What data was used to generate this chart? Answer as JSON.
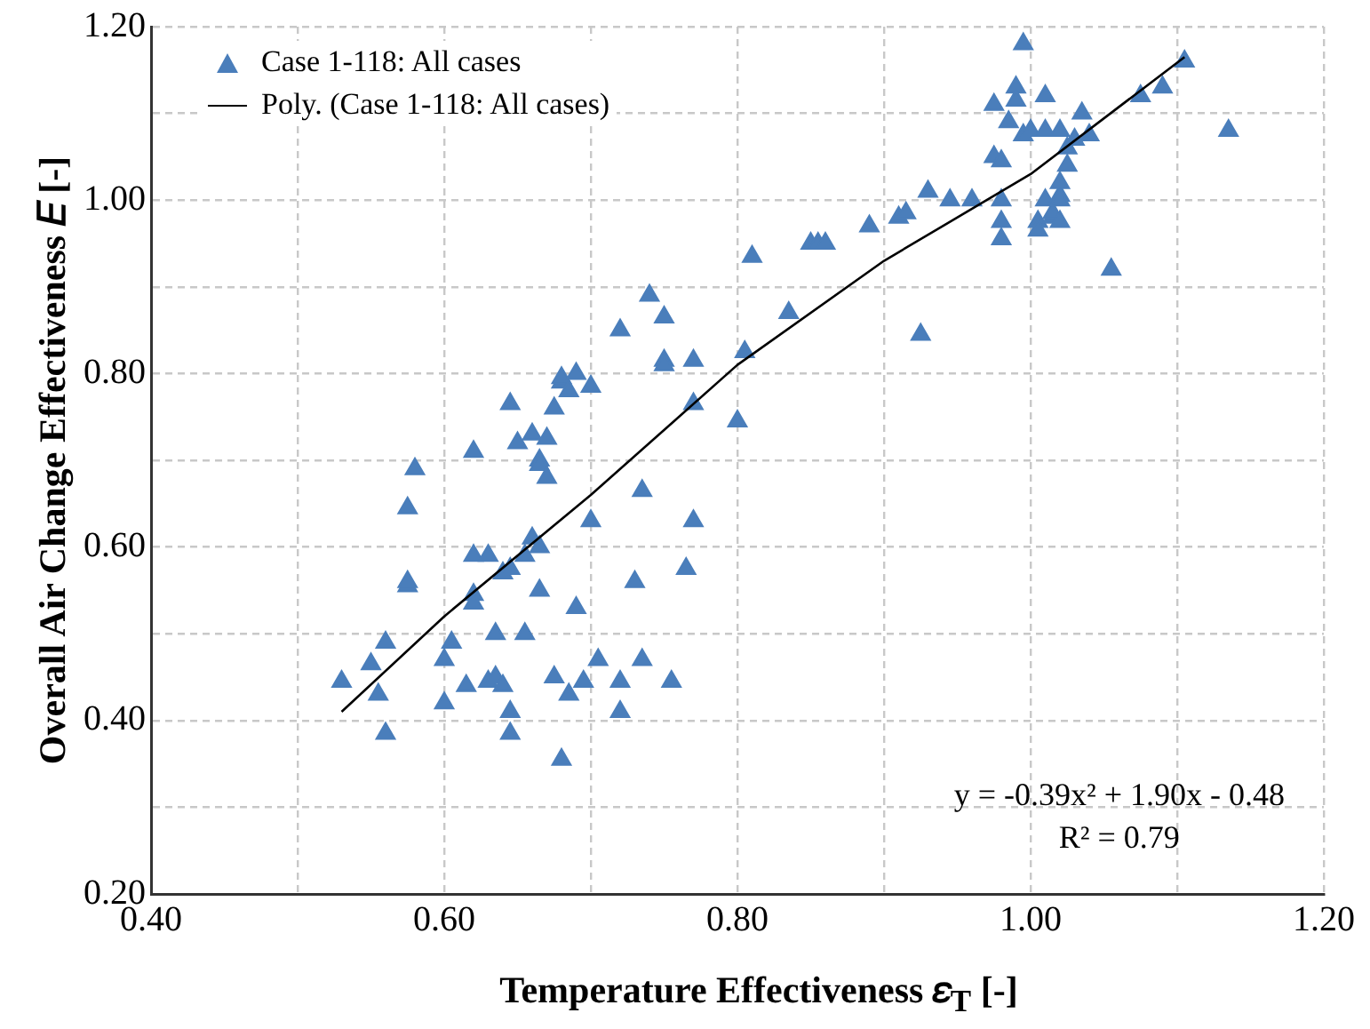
{
  "chart_data": {
    "type": "scatter",
    "xlabel": "Temperature Effectiveness 𝜀$_{T}$  [-]",
    "ylabel": "Overall Air Change Effectiveness 𝐸 [-]",
    "xlim": [
      0.4,
      1.2
    ],
    "ylim": [
      0.2,
      1.2
    ],
    "xticks": [
      {
        "value": 0.4,
        "label": "0.40"
      },
      {
        "value": 0.5,
        "label": null
      },
      {
        "value": 0.6,
        "label": "0.60"
      },
      {
        "value": 0.7,
        "label": null
      },
      {
        "value": 0.8,
        "label": "0.80"
      },
      {
        "value": 0.9,
        "label": null
      },
      {
        "value": 1.0,
        "label": "1.00"
      },
      {
        "value": 1.1,
        "label": null
      },
      {
        "value": 1.2,
        "label": "1.20"
      }
    ],
    "yticks": [
      {
        "value": 0.2,
        "label": "0.20"
      },
      {
        "value": 0.3,
        "label": null
      },
      {
        "value": 0.4,
        "label": "0.40"
      },
      {
        "value": 0.5,
        "label": null
      },
      {
        "value": 0.6,
        "label": "0.60"
      },
      {
        "value": 0.7,
        "label": null
      },
      {
        "value": 0.8,
        "label": "0.80"
      },
      {
        "value": 0.9,
        "label": null
      },
      {
        "value": 1.0,
        "label": "1.00"
      },
      {
        "value": 1.1,
        "label": null
      },
      {
        "value": 1.2,
        "label": "1.20"
      }
    ],
    "grid": true,
    "legend": "top left",
    "marker": "triangle",
    "annotations": [
      "y = -0.39x² + 1.90x - 0.48",
      "R² = 0.79"
    ],
    "series": [
      {
        "name": "Case 1-118: All cases",
        "color": "#4a7ebb",
        "x": [
          0.53,
          0.55,
          0.555,
          0.56,
          0.56,
          0.575,
          0.575,
          0.575,
          0.58,
          0.6,
          0.6,
          0.605,
          0.615,
          0.62,
          0.62,
          0.62,
          0.62,
          0.63,
          0.63,
          0.635,
          0.635,
          0.64,
          0.64,
          0.645,
          0.645,
          0.645,
          0.645,
          0.65,
          0.655,
          0.655,
          0.66,
          0.66,
          0.665,
          0.665,
          0.665,
          0.665,
          0.67,
          0.67,
          0.675,
          0.675,
          0.68,
          0.68,
          0.68,
          0.685,
          0.685,
          0.69,
          0.69,
          0.695,
          0.7,
          0.7,
          0.705,
          0.72,
          0.72,
          0.72,
          0.73,
          0.735,
          0.735,
          0.74,
          0.75,
          0.75,
          0.75,
          0.755,
          0.765,
          0.77,
          0.77,
          0.77,
          0.8,
          0.805,
          0.81,
          0.835,
          0.85,
          0.855,
          0.86,
          0.89,
          0.91,
          0.915,
          0.925,
          0.93,
          0.945,
          0.96,
          0.975,
          0.975,
          0.98,
          0.98,
          0.98,
          0.98,
          0.985,
          0.99,
          0.99,
          0.995,
          0.995,
          1.0,
          1.005,
          1.005,
          1.01,
          1.01,
          1.01,
          1.015,
          1.015,
          1.02,
          1.02,
          1.02,
          1.02,
          1.02,
          1.025,
          1.025,
          1.03,
          1.035,
          1.04,
          1.055,
          1.075,
          1.09,
          1.105,
          1.135
        ],
        "values": [
          0.445,
          0.465,
          0.43,
          0.49,
          0.385,
          0.555,
          0.56,
          0.645,
          0.69,
          0.42,
          0.47,
          0.49,
          0.44,
          0.59,
          0.545,
          0.535,
          0.71,
          0.59,
          0.445,
          0.45,
          0.5,
          0.44,
          0.57,
          0.575,
          0.41,
          0.385,
          0.765,
          0.72,
          0.59,
          0.5,
          0.61,
          0.73,
          0.6,
          0.7,
          0.695,
          0.55,
          0.68,
          0.725,
          0.45,
          0.76,
          0.79,
          0.795,
          0.355,
          0.43,
          0.78,
          0.8,
          0.53,
          0.445,
          0.785,
          0.63,
          0.47,
          0.85,
          0.445,
          0.41,
          0.56,
          0.665,
          0.47,
          0.89,
          0.865,
          0.815,
          0.81,
          0.445,
          0.575,
          0.765,
          0.63,
          0.815,
          0.745,
          0.825,
          0.935,
          0.87,
          0.95,
          0.95,
          0.95,
          0.97,
          0.98,
          0.985,
          0.845,
          1.01,
          1.0,
          1.0,
          1.11,
          1.05,
          1.045,
          1.0,
          0.975,
          0.955,
          1.09,
          1.13,
          1.115,
          1.18,
          1.075,
          1.08,
          0.975,
          0.965,
          1.12,
          1.08,
          1.0,
          0.98,
          0.985,
          1.08,
          1.005,
          1.02,
          1.0,
          0.975,
          1.04,
          1.06,
          1.07,
          1.1,
          1.075,
          0.92,
          1.12,
          1.13,
          1.16,
          1.08
        ]
      },
      {
        "name": "Poly. (Case 1-118: All cases)",
        "type": "line",
        "marker": "none",
        "line_style": "solid",
        "color": "#000000",
        "x": [
          0.53,
          0.6,
          0.7,
          0.8,
          0.9,
          1.0,
          1.105
        ],
        "values": [
          0.41,
          0.52,
          0.66,
          0.81,
          0.93,
          1.03,
          1.165
        ]
      }
    ]
  }
}
